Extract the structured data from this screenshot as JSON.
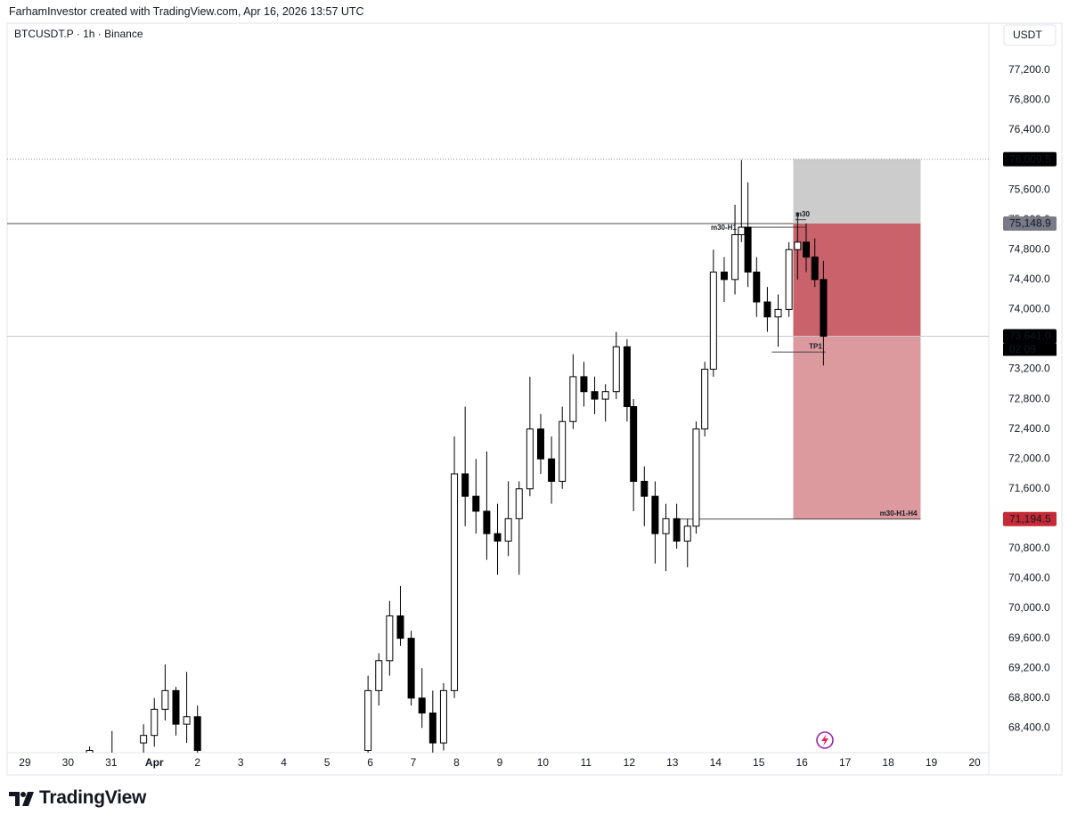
{
  "header": {
    "text": "FarhamInvestor created with TradingView.com, Apr 16, 2026 13:57 UTC"
  },
  "chart_data": {
    "type": "candlestick",
    "title": "BTCUSDT.P · 1h · Binance",
    "currency": "USDT",
    "up_color": "#ffffff",
    "down_color": "#000000",
    "wick_color": "#000000",
    "grid": false,
    "x": [
      1.5,
      2.02,
      2.75,
      3.0,
      3.25,
      3.5,
      3.75,
      4.0,
      7.95,
      8.2,
      8.45,
      8.7,
      8.95,
      9.2,
      9.45,
      9.7,
      9.95,
      10.2,
      10.45,
      10.7,
      10.95,
      11.2,
      11.45,
      11.7,
      11.95,
      12.2,
      12.45,
      12.7,
      12.95,
      13.2,
      13.45,
      13.7,
      13.95,
      14.1,
      14.35,
      14.6,
      14.85,
      15.1,
      15.35,
      15.55,
      15.75,
      15.95,
      16.2,
      16.45,
      16.6,
      16.75,
      16.95,
      17.2,
      17.45,
      17.7,
      17.9,
      18.1,
      18.3,
      18.5
    ],
    "open": [
      68050,
      67950,
      68200,
      68300,
      68650,
      68900,
      68450,
      68550,
      68100,
      68900,
      69300,
      69900,
      69600,
      68800,
      68600,
      68200,
      68900,
      71800,
      71500,
      71300,
      71000,
      70900,
      71200,
      71600,
      72400,
      72000,
      71700,
      72500,
      73100,
      72900,
      72800,
      72900,
      73500,
      72700,
      71700,
      71500,
      71000,
      71200,
      70900,
      71100,
      72400,
      73200,
      74500,
      74400,
      75000,
      75100,
      74500,
      74100,
      73900,
      74000,
      74800,
      74900,
      74700,
      74400
    ],
    "high": [
      68150,
      68360,
      68450,
      68800,
      69250,
      68950,
      69150,
      68700,
      69100,
      69400,
      70100,
      70300,
      69700,
      69200,
      68900,
      69000,
      72300,
      72700,
      72000,
      72100,
      71400,
      71700,
      71700,
      73100,
      72600,
      72300,
      72700,
      73400,
      73300,
      73100,
      73000,
      73700,
      73600,
      72800,
      71900,
      71700,
      71400,
      71400,
      71200,
      72500,
      73300,
      74800,
      74700,
      75400,
      76000,
      75700,
      74700,
      74300,
      74200,
      74900,
      75300,
      75150,
      74950,
      74650
    ],
    "low": [
      67900,
      67850,
      68000,
      68150,
      68500,
      68300,
      68200,
      68000,
      68000,
      68700,
      69100,
      69500,
      68700,
      68400,
      67950,
      68100,
      68800,
      71100,
      71000,
      70650,
      70450,
      70700,
      70450,
      71500,
      71800,
      71400,
      71600,
      72400,
      72700,
      72600,
      72500,
      72800,
      72500,
      71300,
      71100,
      70600,
      70500,
      70800,
      70550,
      71000,
      72300,
      73100,
      74100,
      74200,
      74900,
      74300,
      73900,
      73700,
      73500,
      73900,
      74400,
      74500,
      74300,
      73250
    ],
    "close": [
      68100,
      68000,
      68300,
      68650,
      68900,
      68450,
      68550,
      68100,
      68900,
      69300,
      69900,
      69600,
      68800,
      68600,
      68200,
      68900,
      71800,
      71500,
      71300,
      71000,
      70900,
      71200,
      71600,
      72400,
      72000,
      71700,
      72500,
      73100,
      72900,
      72800,
      72900,
      73500,
      72700,
      71700,
      71500,
      71000,
      71200,
      70900,
      71100,
      72400,
      73200,
      74500,
      74400,
      75000,
      75100,
      74500,
      74100,
      73900,
      74000,
      74800,
      74900,
      74700,
      74400,
      73641
    ],
    "xlim": [
      -0.41,
      22.33
    ],
    "ylim": [
      68070,
      77830
    ],
    "xticks": [
      {
        "value": 0,
        "label": "29"
      },
      {
        "value": 1,
        "label": "30"
      },
      {
        "value": 2,
        "label": "31"
      },
      {
        "value": 3,
        "label": "Apr"
      },
      {
        "value": 4,
        "label": "2"
      },
      {
        "value": 5,
        "label": "3"
      },
      {
        "value": 6,
        "label": "4"
      },
      {
        "value": 7,
        "label": "5"
      },
      {
        "value": 8,
        "label": "6"
      },
      {
        "value": 9,
        "label": "7"
      },
      {
        "value": 10,
        "label": "8"
      },
      {
        "value": 11,
        "label": "9"
      },
      {
        "value": 12,
        "label": "10"
      },
      {
        "value": 13,
        "label": "11"
      },
      {
        "value": 14,
        "label": "12"
      },
      {
        "value": 15,
        "label": "13"
      },
      {
        "value": 16,
        "label": "14"
      },
      {
        "value": 17,
        "label": "15"
      },
      {
        "value": 18,
        "label": "16"
      },
      {
        "value": 19,
        "label": "17"
      },
      {
        "value": 20,
        "label": "18"
      },
      {
        "value": 21,
        "label": "19"
      },
      {
        "value": 22,
        "label": "20"
      }
    ],
    "yticks": [
      {
        "value": 68400,
        "label": "68,400.0"
      },
      {
        "value": 68800,
        "label": "68,800.0"
      },
      {
        "value": 69200,
        "label": "69,200.0"
      },
      {
        "value": 69600,
        "label": "69,600.0"
      },
      {
        "value": 70000,
        "label": "70,000.0"
      },
      {
        "value": 70400,
        "label": "70,400.0"
      },
      {
        "value": 70800,
        "label": "70,800.0"
      },
      {
        "value": 71200,
        "label": "71,200.0"
      },
      {
        "value": 71600,
        "label": "71,600.0"
      },
      {
        "value": 72000,
        "label": "72,000.0"
      },
      {
        "value": 72400,
        "label": "72,400.0"
      },
      {
        "value": 72800,
        "label": "72,800.0"
      },
      {
        "value": 73200,
        "label": "73,200.0"
      },
      {
        "value": 73600,
        "label": "73,600.0"
      },
      {
        "value": 74000,
        "label": "74,000.0"
      },
      {
        "value": 74400,
        "label": "74,400.0"
      },
      {
        "value": 74800,
        "label": "74,800.0"
      },
      {
        "value": 75200,
        "label": "75,200.0"
      },
      {
        "value": 75600,
        "label": "75,600.0"
      },
      {
        "value": 76000,
        "label": "76,000.0"
      },
      {
        "value": 76400,
        "label": "76,400.0"
      },
      {
        "value": 76800,
        "label": "76,800.0"
      },
      {
        "value": 77200,
        "label": "77,200.0"
      }
    ],
    "levels": [
      {
        "value": 76009.5,
        "label": "76,009.5",
        "line_style": "dotted",
        "tag_color": "#000000"
      },
      {
        "value": 75148.9,
        "label": "75,148.9",
        "line_style": "solid",
        "tag_color": "#787b86"
      },
      {
        "value": 73641.0,
        "label": "73,641.0",
        "line_style": "thin",
        "tag_color": "#000000"
      },
      {
        "value": 71194.5,
        "label": "71,194.5",
        "line_style": "none",
        "tag_color": "#c62a36"
      }
    ],
    "countdown": "02:09",
    "position": {
      "start": 17.8,
      "end": 20.75
    },
    "annotations": [
      {
        "text": "m30-H1",
        "x_start": 16.55,
        "x_end": 18.1,
        "price": 75100
      },
      {
        "text": "m30",
        "x_start": 17.85,
        "x_end": 18.1,
        "price": 75200
      },
      {
        "text": "TP1",
        "x_start": 17.3,
        "x_end": 18.55,
        "price": 73430
      },
      {
        "text": "m30-H1-H4",
        "x_start": 15.05,
        "x_end": 20.75,
        "price": 71194.5
      }
    ]
  },
  "footer": {
    "brand": "TradingView"
  }
}
